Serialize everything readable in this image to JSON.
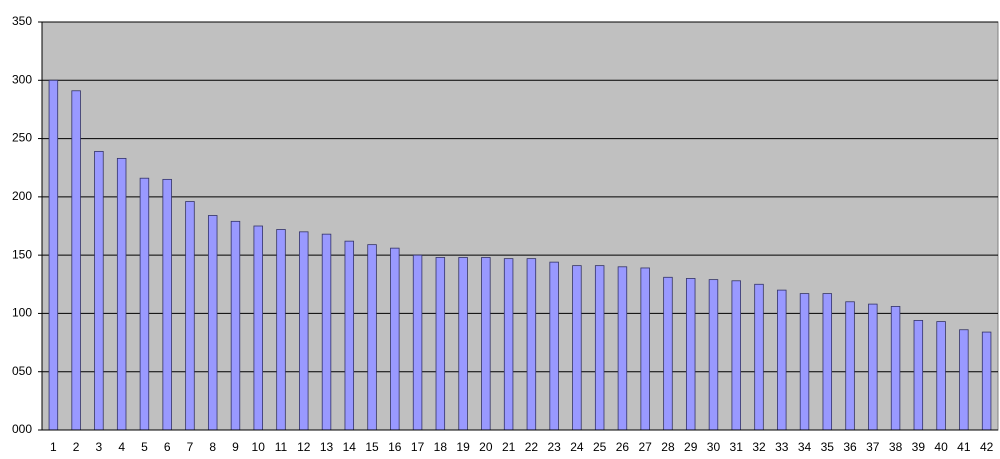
{
  "chart_data": {
    "type": "bar",
    "categories": [
      "1",
      "2",
      "3",
      "4",
      "5",
      "6",
      "7",
      "8",
      "9",
      "10",
      "11",
      "12",
      "13",
      "14",
      "15",
      "16",
      "17",
      "18",
      "19",
      "20",
      "21",
      "22",
      "23",
      "24",
      "25",
      "26",
      "27",
      "28",
      "29",
      "30",
      "31",
      "32",
      "33",
      "34",
      "35",
      "36",
      "37",
      "38",
      "39",
      "40",
      "41",
      "42"
    ],
    "values": [
      300,
      291,
      239,
      233,
      216,
      215,
      196,
      184,
      179,
      175,
      172,
      170,
      168,
      162,
      159,
      156,
      150,
      148,
      148,
      148,
      147,
      147,
      144,
      141,
      141,
      140,
      139,
      131,
      130,
      129,
      128,
      125,
      120,
      117,
      117,
      110,
      108,
      106,
      94,
      93,
      86,
      84
    ],
    "color": "#9999ff",
    "ylim": [
      0,
      350
    ],
    "yticks": [
      {
        "value": 0,
        "label": "000"
      },
      {
        "value": 50,
        "label": "050"
      },
      100,
      150,
      200,
      250,
      300,
      350
    ],
    "grid": true
  }
}
